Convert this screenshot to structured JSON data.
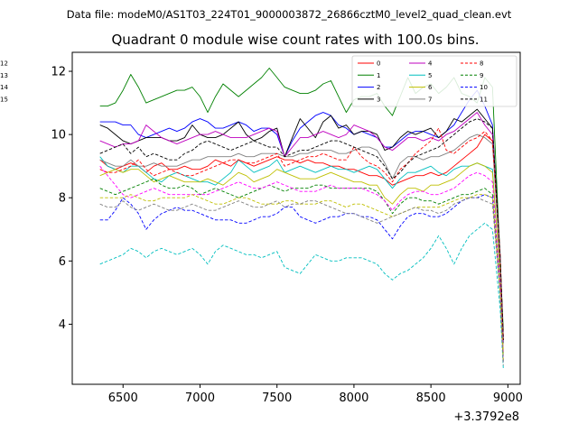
{
  "chart_data": {
    "type": "line",
    "suptitle": "Data file: modeM0/AS1T03_224T01_9000003872_26866cztM0_level2_quad_clean.evt",
    "title": "Quadrant 0 module wise count rates with 100.0s bins.",
    "xlabel": "",
    "ylabel": "",
    "x_offset_label": "+3.3792e8",
    "xlim": [
      6170,
      9080
    ],
    "ylim": [
      2.1,
      12.6
    ],
    "x_ticks": [
      6500,
      7000,
      7500,
      8000,
      8500,
      9000
    ],
    "x_tick_labels": [
      "6500",
      "7000",
      "7500",
      "8000",
      "8500",
      "9000"
    ],
    "y_ticks": [
      4,
      6,
      8,
      10,
      12
    ],
    "y_tick_labels": [
      "4",
      "6",
      "8",
      "10",
      "12"
    ],
    "legend_position": "top-right",
    "x": [
      6350,
      6400,
      6450,
      6500,
      6550,
      6600,
      6650,
      6700,
      6750,
      6800,
      6850,
      6900,
      6950,
      7000,
      7050,
      7100,
      7150,
      7200,
      7250,
      7300,
      7350,
      7400,
      7450,
      7500,
      7550,
      7600,
      7650,
      7700,
      7750,
      7800,
      7850,
      7900,
      7950,
      8000,
      8050,
      8100,
      8150,
      8200,
      8250,
      8300,
      8350,
      8400,
      8450,
      8500,
      8550,
      8600,
      8650,
      8700,
      8750,
      8800,
      8850,
      8900,
      8950,
      8970
    ],
    "series": [
      {
        "name": "0",
        "color": "#ff0000",
        "dash": "solid",
        "values": [
          9.2,
          9.0,
          8.9,
          9.0,
          9.1,
          9.0,
          8.8,
          9.0,
          9.1,
          8.9,
          8.9,
          9.0,
          8.9,
          8.9,
          9.0,
          9.2,
          9.1,
          9.0,
          9.2,
          9.1,
          9.0,
          9.1,
          9.2,
          9.3,
          9.2,
          9.2,
          9.1,
          9.2,
          9.1,
          9.1,
          9.0,
          9.0,
          8.9,
          8.9,
          8.8,
          8.7,
          8.7,
          8.6,
          8.4,
          8.5,
          8.6,
          8.7,
          8.7,
          8.8,
          8.7,
          8.8,
          9.0,
          9.2,
          9.4,
          9.6,
          10.0,
          9.8,
          6.0,
          3.6
        ]
      },
      {
        "name": "1",
        "color": "#008000",
        "dash": "solid",
        "values": [
          10.9,
          10.9,
          11.0,
          11.4,
          11.9,
          11.5,
          11.0,
          11.1,
          11.2,
          11.3,
          11.4,
          11.4,
          11.5,
          11.2,
          10.7,
          11.2,
          11.6,
          11.4,
          11.2,
          11.4,
          11.6,
          11.8,
          12.1,
          11.8,
          11.5,
          11.4,
          11.3,
          11.3,
          11.4,
          11.6,
          11.7,
          11.2,
          10.7,
          11.1,
          11.2,
          11.2,
          11.3,
          10.9,
          10.6,
          11.2,
          11.8,
          11.3,
          11.5,
          11.6,
          11.3,
          11.5,
          11.8,
          11.3,
          11.2,
          11.0,
          11.8,
          11.5,
          6.0,
          3.8
        ]
      },
      {
        "name": "2",
        "color": "#0000ff",
        "dash": "solid",
        "values": [
          10.4,
          10.4,
          10.4,
          10.3,
          10.3,
          10.0,
          9.9,
          10.0,
          10.1,
          10.2,
          10.1,
          10.2,
          10.4,
          10.5,
          10.4,
          10.2,
          10.2,
          10.3,
          10.4,
          10.3,
          10.1,
          10.2,
          10.2,
          10.0,
          9.3,
          9.8,
          10.2,
          10.4,
          10.6,
          10.7,
          10.6,
          10.3,
          10.2,
          10.0,
          10.1,
          10.0,
          9.9,
          9.6,
          9.6,
          9.8,
          10.0,
          10.1,
          10.1,
          10.0,
          9.9,
          10.1,
          10.3,
          10.7,
          11.1,
          11.4,
          10.9,
          10.3,
          6.0,
          3.4
        ]
      },
      {
        "name": "3",
        "color": "#000000",
        "dash": "solid",
        "values": [
          10.3,
          10.2,
          10.0,
          9.8,
          9.7,
          9.8,
          9.9,
          9.9,
          9.9,
          9.8,
          9.8,
          9.9,
          10.3,
          10.0,
          9.9,
          9.9,
          10.0,
          10.2,
          10.4,
          10.0,
          9.8,
          9.9,
          10.1,
          10.2,
          9.3,
          9.9,
          10.5,
          10.2,
          9.9,
          10.4,
          10.6,
          10.2,
          10.3,
          10.0,
          10.1,
          10.1,
          10.0,
          9.5,
          9.6,
          9.9,
          10.1,
          10.0,
          10.1,
          10.2,
          9.9,
          10.1,
          10.5,
          10.4,
          10.6,
          10.8,
          10.5,
          10.2,
          6.2,
          3.5
        ]
      },
      {
        "name": "4",
        "color": "#bf00bf",
        "dash": "solid",
        "values": [
          9.8,
          9.7,
          9.6,
          9.7,
          9.7,
          9.8,
          10.3,
          10.1,
          9.9,
          9.8,
          9.7,
          9.8,
          9.9,
          10.0,
          10.0,
          10.1,
          10.0,
          9.9,
          9.9,
          9.9,
          10.0,
          10.1,
          10.2,
          10.1,
          9.3,
          9.6,
          9.9,
          9.9,
          10.0,
          10.1,
          10.0,
          9.9,
          10.0,
          10.3,
          10.2,
          10.1,
          9.9,
          9.6,
          9.5,
          9.7,
          9.9,
          9.9,
          9.8,
          9.9,
          9.8,
          10.0,
          10.1,
          10.3,
          10.5,
          10.7,
          10.3,
          10.0,
          6.0,
          3.4
        ]
      },
      {
        "name": "5",
        "color": "#00bfbf",
        "dash": "solid",
        "values": [
          9.3,
          9.0,
          8.9,
          8.8,
          9.0,
          9.0,
          8.8,
          8.6,
          8.5,
          8.7,
          8.8,
          8.7,
          8.6,
          8.5,
          8.5,
          8.4,
          8.6,
          8.8,
          9.2,
          9.0,
          8.8,
          8.9,
          9.0,
          9.2,
          8.8,
          8.9,
          9.0,
          8.9,
          8.8,
          8.9,
          9.0,
          8.9,
          8.9,
          8.8,
          8.9,
          9.0,
          8.9,
          8.6,
          8.3,
          8.6,
          8.8,
          8.8,
          8.9,
          9.0,
          8.8,
          8.7,
          8.9,
          9.0,
          9.0,
          9.1,
          9.0,
          8.9,
          5.5,
          3.0
        ]
      },
      {
        "name": "6",
        "color": "#bfbf00",
        "dash": "solid",
        "values": [
          8.7,
          8.8,
          8.9,
          8.8,
          8.9,
          8.9,
          8.7,
          8.5,
          8.6,
          8.7,
          8.6,
          8.5,
          8.5,
          8.5,
          8.6,
          8.5,
          8.4,
          8.6,
          8.8,
          8.7,
          8.5,
          8.6,
          8.7,
          8.9,
          8.8,
          8.7,
          8.6,
          8.6,
          8.6,
          8.7,
          8.8,
          8.7,
          8.6,
          8.5,
          8.5,
          8.4,
          8.4,
          8.0,
          7.8,
          8.1,
          8.3,
          8.3,
          8.2,
          8.4,
          8.4,
          8.5,
          8.6,
          8.8,
          9.0,
          9.1,
          9.0,
          8.8,
          5.6,
          3.1
        ]
      },
      {
        "name": "7",
        "color": "#808080",
        "dash": "solid",
        "values": [
          9.2,
          9.1,
          9.0,
          9.0,
          9.2,
          9.0,
          9.0,
          9.1,
          9.0,
          9.0,
          9.0,
          9.1,
          9.2,
          9.2,
          9.3,
          9.3,
          9.3,
          9.3,
          9.4,
          9.3,
          9.3,
          9.4,
          9.4,
          9.4,
          9.3,
          9.3,
          9.4,
          9.4,
          9.5,
          9.5,
          9.5,
          9.4,
          9.4,
          9.5,
          9.6,
          9.6,
          9.5,
          9.1,
          8.6,
          9.1,
          9.3,
          9.3,
          9.2,
          9.3,
          9.3,
          9.4,
          9.5,
          9.7,
          9.9,
          10.0,
          9.9,
          9.7,
          6.0,
          3.4
        ]
      },
      {
        "name": "8",
        "color": "#ff0000",
        "dash": "dashed",
        "values": [
          8.9,
          8.8,
          8.8,
          8.9,
          9.0,
          9.2,
          8.9,
          8.7,
          8.8,
          8.9,
          8.8,
          8.7,
          8.7,
          8.8,
          8.9,
          9.0,
          9.1,
          9.2,
          9.2,
          9.1,
          9.1,
          9.2,
          9.3,
          9.4,
          9.0,
          9.1,
          9.2,
          9.3,
          9.3,
          9.4,
          9.3,
          9.2,
          9.2,
          9.6,
          9.3,
          9.1,
          9.0,
          8.8,
          8.5,
          8.9,
          9.1,
          9.4,
          9.6,
          9.8,
          10.2,
          9.5,
          9.4,
          9.6,
          9.8,
          9.9,
          10.1,
          9.8,
          6.2,
          3.5
        ]
      },
      {
        "name": "9",
        "color": "#008000",
        "dash": "dashed",
        "values": [
          8.3,
          8.2,
          8.1,
          8.2,
          8.3,
          8.4,
          8.5,
          8.6,
          8.4,
          8.3,
          8.3,
          8.4,
          8.3,
          8.1,
          8.2,
          8.3,
          8.2,
          8.1,
          8.0,
          8.1,
          8.2,
          8.3,
          8.4,
          8.3,
          8.2,
          8.3,
          8.3,
          8.3,
          8.4,
          8.4,
          8.3,
          8.3,
          8.3,
          8.3,
          8.3,
          8.3,
          8.2,
          7.9,
          7.5,
          7.8,
          8.0,
          8.0,
          7.9,
          7.9,
          7.8,
          7.9,
          8.0,
          8.1,
          8.1,
          8.2,
          8.3,
          8.1,
          5.1,
          2.8
        ]
      },
      {
        "name": "10",
        "color": "#0000ff",
        "dash": "dashed",
        "values": [
          7.3,
          7.3,
          7.6,
          8.0,
          7.8,
          7.5,
          7.0,
          7.3,
          7.5,
          7.6,
          7.7,
          7.6,
          7.6,
          7.5,
          7.4,
          7.3,
          7.3,
          7.3,
          7.2,
          7.2,
          7.3,
          7.4,
          7.4,
          7.5,
          7.7,
          7.7,
          7.4,
          7.3,
          7.2,
          7.3,
          7.4,
          7.4,
          7.5,
          7.5,
          7.4,
          7.4,
          7.3,
          7.0,
          6.7,
          7.1,
          7.4,
          7.5,
          7.5,
          7.4,
          7.4,
          7.5,
          7.7,
          7.9,
          8.0,
          8.0,
          8.1,
          8.0,
          5.0,
          2.8
        ]
      },
      {
        "name": "11",
        "color": "#000000",
        "dash": "dashed",
        "values": [
          9.4,
          9.5,
          9.6,
          9.7,
          9.4,
          9.6,
          9.3,
          9.4,
          9.3,
          9.2,
          9.2,
          9.4,
          9.5,
          9.7,
          9.8,
          9.7,
          9.6,
          9.5,
          9.6,
          9.7,
          9.8,
          9.7,
          9.6,
          9.6,
          9.3,
          9.4,
          9.5,
          9.5,
          9.6,
          9.7,
          9.8,
          9.8,
          9.7,
          9.6,
          9.5,
          9.4,
          9.3,
          9.0,
          8.6,
          8.8,
          9.1,
          9.3,
          9.4,
          9.5,
          9.6,
          9.8,
          10.0,
          10.2,
          10.4,
          10.5,
          10.4,
          10.2,
          6.1,
          3.5
        ]
      },
      {
        "name": "12",
        "color": "#ff00ff",
        "dash": "dashed",
        "values": [
          9.0,
          8.7,
          8.4,
          8.1,
          8.0,
          8.1,
          8.2,
          8.3,
          8.2,
          8.1,
          8.1,
          8.1,
          8.1,
          8.1,
          8.1,
          8.2,
          8.3,
          8.4,
          8.5,
          8.4,
          8.3,
          8.3,
          8.4,
          8.5,
          8.4,
          8.3,
          8.2,
          8.2,
          8.2,
          8.3,
          8.4,
          8.3,
          8.3,
          8.3,
          8.3,
          8.2,
          8.1,
          7.9,
          7.6,
          7.9,
          8.1,
          8.2,
          8.2,
          8.1,
          8.1,
          8.2,
          8.3,
          8.5,
          8.7,
          8.8,
          8.7,
          8.5,
          5.3,
          2.9
        ]
      },
      {
        "name": "13",
        "color": "#00bfbf",
        "dash": "dashed",
        "values": [
          5.9,
          6.0,
          6.1,
          6.2,
          6.4,
          6.3,
          6.1,
          6.3,
          6.4,
          6.3,
          6.2,
          6.3,
          6.4,
          6.2,
          5.9,
          6.3,
          6.5,
          6.4,
          6.3,
          6.2,
          6.2,
          6.1,
          6.2,
          6.3,
          5.8,
          5.7,
          5.6,
          5.9,
          6.2,
          6.1,
          6.0,
          6.0,
          6.1,
          6.1,
          6.1,
          6.0,
          5.9,
          5.6,
          5.4,
          5.6,
          5.7,
          5.9,
          6.1,
          6.4,
          6.8,
          6.4,
          5.9,
          6.4,
          6.8,
          7.0,
          7.2,
          7.0,
          4.5,
          2.6
        ]
      },
      {
        "name": "14",
        "color": "#bfbf00",
        "dash": "dashed",
        "values": [
          8.0,
          8.0,
          8.0,
          8.0,
          8.1,
          8.0,
          7.9,
          7.9,
          8.0,
          8.0,
          8.0,
          8.0,
          8.1,
          8.0,
          7.9,
          7.8,
          7.8,
          7.9,
          8.0,
          8.0,
          7.9,
          7.8,
          7.8,
          7.8,
          7.9,
          7.9,
          7.8,
          7.8,
          7.8,
          7.9,
          7.9,
          7.8,
          7.7,
          7.8,
          7.8,
          7.7,
          7.6,
          7.5,
          7.4,
          7.5,
          7.6,
          7.7,
          7.7,
          7.7,
          7.7,
          7.8,
          7.9,
          8.0,
          8.0,
          8.1,
          8.1,
          8.0,
          5.0,
          2.8
        ]
      },
      {
        "name": "15",
        "color": "#808080",
        "dash": "dashed",
        "values": [
          7.8,
          7.7,
          7.7,
          7.9,
          7.7,
          7.6,
          7.7,
          7.8,
          7.7,
          7.6,
          7.6,
          7.7,
          7.8,
          7.7,
          7.6,
          7.6,
          7.7,
          7.8,
          7.9,
          7.8,
          7.7,
          7.7,
          7.8,
          7.9,
          7.7,
          7.8,
          7.8,
          7.9,
          7.9,
          7.8,
          7.7,
          7.6,
          7.5,
          7.5,
          7.4,
          7.3,
          7.2,
          7.3,
          7.4,
          7.5,
          7.6,
          7.7,
          7.6,
          7.6,
          7.5,
          7.6,
          7.8,
          7.9,
          8.0,
          8.0,
          7.9,
          7.8,
          4.9,
          2.7
        ]
      }
    ]
  }
}
